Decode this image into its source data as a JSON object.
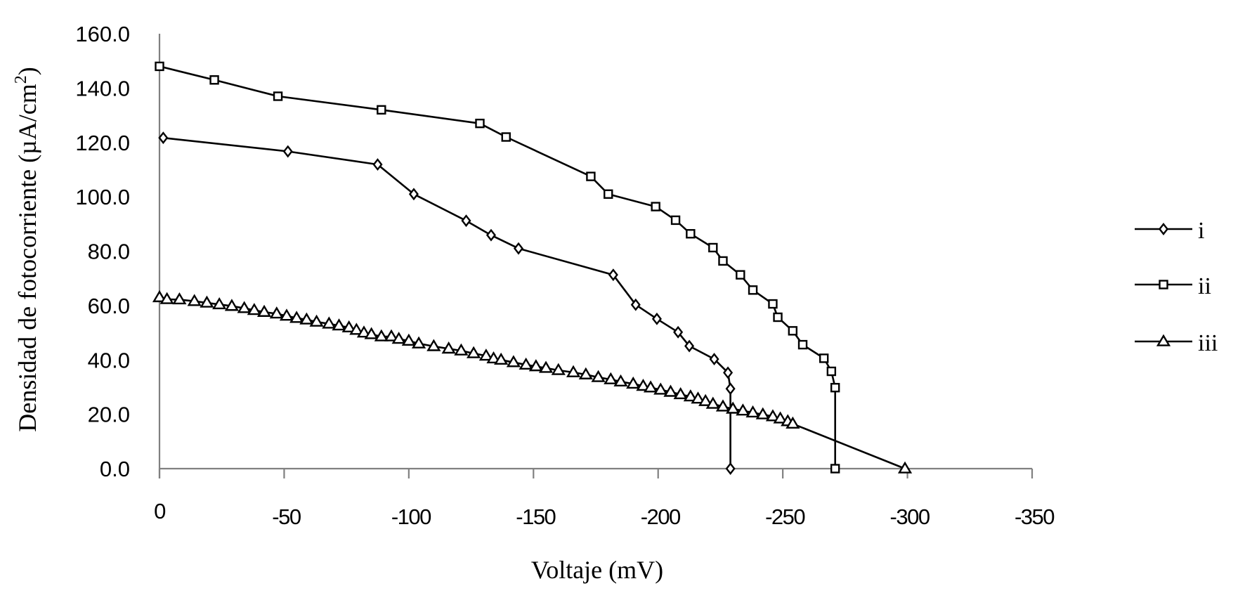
{
  "chart_data": {
    "type": "line",
    "title": "",
    "xlabel": "Voltaje (mV)",
    "ylabel": "Densidad de fotocorriente (µA/cm²)",
    "ylabel_main": "Densidad de fotocorriente (µA/cm",
    "ylabel_sup": "2",
    "ylabel_close": ")",
    "xlim": [
      0,
      -350
    ],
    "ylim": [
      0,
      160
    ],
    "x_ticks": [
      0,
      -50,
      -100,
      -150,
      -200,
      -250,
      -300,
      -350
    ],
    "x_tick_labels": [
      "0",
      "-50",
      "-100",
      "-150",
      "-200",
      "-250",
      "-300",
      "-350"
    ],
    "y_ticks": [
      0,
      20,
      40,
      60,
      80,
      100,
      120,
      140,
      160
    ],
    "y_tick_labels": [
      "0.0",
      "20.0",
      "40.0",
      "60.0",
      "80.0",
      "100.0",
      "120.0",
      "140.0",
      "160.0"
    ],
    "grid": false,
    "legend_position": "right",
    "series": [
      {
        "name": "i",
        "marker": "diamond",
        "x": [
          -1.5,
          -51.5,
          -87.5,
          -102,
          -123,
          -133,
          -144,
          -182,
          -191,
          -199.5,
          -208,
          -212.5,
          -222.5,
          -228,
          -229,
          -229
        ],
        "y": [
          121.7,
          116.7,
          111.9,
          101.0,
          91.2,
          85.9,
          81.0,
          71.3,
          60.3,
          55.1,
          50.2,
          45.1,
          40.3,
          35.3,
          29.4,
          0.0
        ]
      },
      {
        "name": "ii",
        "marker": "square",
        "x": [
          0,
          -22,
          -47.5,
          -89,
          -128.5,
          -139,
          -173,
          -180,
          -199,
          -207,
          -213,
          -222,
          -226,
          -233,
          -238,
          -246,
          -248,
          -254,
          -258,
          -266.5,
          -269.5,
          -271,
          -271
        ],
        "y": [
          148.0,
          143.0,
          137.0,
          132.0,
          127.0,
          122.0,
          107.5,
          101.0,
          96.4,
          91.4,
          86.4,
          81.3,
          76.4,
          71.3,
          65.7,
          60.6,
          55.7,
          50.7,
          45.6,
          40.6,
          35.8,
          29.8,
          0.0
        ]
      },
      {
        "name": "iii",
        "marker": "triangle",
        "x": [
          0,
          -3,
          -8,
          -14,
          -19,
          -24,
          -29,
          -34,
          -38,
          -42,
          -47,
          -51,
          -55,
          -59,
          -63,
          -68,
          -72,
          -76,
          -79,
          -82,
          -85,
          -89,
          -93,
          -96,
          -100,
          -104,
          -110,
          -116,
          -121,
          -126,
          -131,
          -134,
          -137,
          -142,
          -147,
          -151,
          -155,
          -160,
          -166,
          -171,
          -176,
          -181,
          -185,
          -190,
          -194,
          -197,
          -201,
          -205,
          -209,
          -213,
          -216,
          -219,
          -222,
          -226,
          -230,
          -234,
          -238,
          -242,
          -246,
          -249,
          -252,
          -254,
          -299
        ],
        "y": [
          63.0,
          62.3,
          62.2,
          61.6,
          61.0,
          60.4,
          59.8,
          59.0,
          58.3,
          57.6,
          57.0,
          56.2,
          55.4,
          54.8,
          54.0,
          53.3,
          52.6,
          51.9,
          51.0,
          50.0,
          49.4,
          48.6,
          48.6,
          47.7,
          47.0,
          46.0,
          45.0,
          44.1,
          43.4,
          42.4,
          41.5,
          40.5,
          40.0,
          39.1,
          38.2,
          37.6,
          37.0,
          36.2,
          35.4,
          34.6,
          33.6,
          32.8,
          32.0,
          31.2,
          30.4,
          29.8,
          29.0,
          28.2,
          27.3,
          26.5,
          25.7,
          24.8,
          23.8,
          22.8,
          22.0,
          21.3,
          20.6,
          19.9,
          19.2,
          18.4,
          17.4,
          16.5,
          0.0
        ]
      }
    ]
  }
}
